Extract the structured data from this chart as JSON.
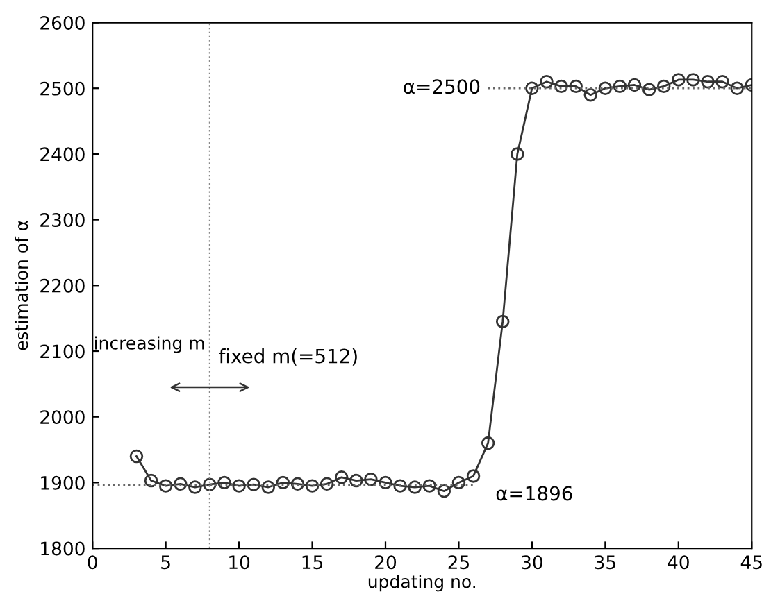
{
  "chart_data": {
    "type": "line",
    "xlabel": "updating no.",
    "ylabel": "estimation of α",
    "xlim": [
      0,
      45
    ],
    "ylim": [
      1800,
      2600
    ],
    "xticks": [
      0,
      5,
      10,
      15,
      20,
      25,
      30,
      35,
      40,
      45
    ],
    "yticks": [
      1800,
      1900,
      2000,
      2100,
      2200,
      2300,
      2400,
      2500,
      2600
    ],
    "grid": false,
    "legend": false,
    "series": [
      {
        "color": "#333333",
        "marker": "circle",
        "line_style": "solid",
        "x": [
          3,
          4,
          5,
          6,
          7,
          8,
          9,
          10,
          11,
          12,
          13,
          14,
          15,
          16,
          17,
          18,
          19,
          20,
          21,
          22,
          23,
          24,
          25,
          26,
          27,
          28,
          29,
          30,
          31,
          32,
          33,
          34,
          35,
          36,
          37,
          38,
          39,
          40,
          41,
          42,
          43,
          44,
          45
        ],
        "values": [
          1940,
          1903,
          1895,
          1898,
          1893,
          1897,
          1900,
          1895,
          1897,
          1893,
          1900,
          1898,
          1895,
          1898,
          1908,
          1903,
          1905,
          1900,
          1895,
          1893,
          1895,
          1887,
          1900,
          1910,
          1960,
          2145,
          2400,
          2500,
          2510,
          2503,
          2503,
          2490,
          2500,
          2503,
          2505,
          2498,
          2503,
          2513,
          2513,
          2510,
          2510,
          2500,
          2505
        ]
      },
      {
        "color": "#666666",
        "marker": "none",
        "line_style": "dotted",
        "x": [
          0,
          26
        ],
        "values": [
          1896,
          1896
        ]
      },
      {
        "color": "#666666",
        "marker": "none",
        "line_style": "dotted",
        "x": [
          27,
          45
        ],
        "values": [
          2500,
          2500
        ]
      }
    ],
    "ref_lines": [
      {
        "axis": "x",
        "value": 8,
        "color": "#888888",
        "line_style": "dotted"
      }
    ],
    "annotations": [
      "α=2500",
      "α=1896",
      "increasing m",
      "fixed m(=512)"
    ]
  }
}
